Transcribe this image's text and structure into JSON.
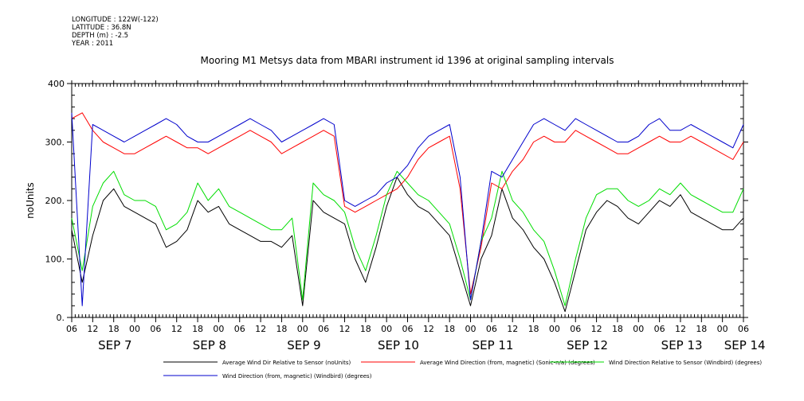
{
  "metadata": [
    "LONGITUDE : 122W(-122)",
    "LATITUDE : 36.8N",
    "DEPTH (m) : -2.5",
    "YEAR : 2011"
  ],
  "chart_data": {
    "type": "line",
    "title": "Mooring M1 Metsys data from MBARI instrument id 1396 at original sampling intervals",
    "ylabel": "noUnits",
    "xlabel": "",
    "ylim": [
      0,
      400
    ],
    "yticks": [
      0,
      100,
      200,
      300,
      400
    ],
    "ytick_labels": [
      "0.",
      "100.",
      "200.",
      "300.",
      "400"
    ],
    "x_range_hours": [
      0,
      192
    ],
    "xtick_hours": [
      0,
      6,
      12,
      18,
      24,
      30,
      36,
      42,
      48,
      54,
      60,
      66,
      72,
      78,
      84,
      90,
      96,
      102,
      108,
      114,
      120,
      126,
      132,
      138,
      144,
      150,
      156,
      162,
      168,
      174,
      180,
      186,
      192
    ],
    "xtick_labels": [
      "06",
      "12",
      "18",
      "00",
      "06",
      "12",
      "18",
      "00",
      "06",
      "12",
      "18",
      "00",
      "06",
      "12",
      "18",
      "00",
      "06",
      "12",
      "18",
      "00",
      "06",
      "12",
      "18",
      "00",
      "06",
      "12",
      "18",
      "00",
      "06",
      "12",
      "18",
      "00",
      "06"
    ],
    "day_labels": [
      {
        "label": "SEP  7",
        "hour": 6
      },
      {
        "label": "SEP  8",
        "hour": 33
      },
      {
        "label": "SEP  9",
        "hour": 60
      },
      {
        "label": "SEP 10",
        "hour": 87
      },
      {
        "label": "SEP 11",
        "hour": 114
      },
      {
        "label": "SEP 12",
        "hour": 141
      },
      {
        "label": "SEP 13",
        "hour": 168
      },
      {
        "label": "SEP 14",
        "hour": 186
      }
    ],
    "grid": false,
    "legend_position": "bottom",
    "series": [
      {
        "name": "Average Wind Dir Relative to Sensor (noUnits)",
        "color": "#000000",
        "x": [
          0,
          3,
          6,
          9,
          12,
          15,
          18,
          21,
          24,
          27,
          30,
          33,
          36,
          39,
          42,
          45,
          48,
          51,
          54,
          57,
          60,
          63,
          66,
          69,
          72,
          75,
          78,
          81,
          84,
          87,
          90,
          93,
          96,
          99,
          102,
          105,
          108,
          111,
          114,
          117,
          120,
          123,
          126,
          129,
          132,
          135,
          138,
          141,
          144,
          147,
          150,
          153,
          156,
          159,
          162,
          165,
          168,
          171,
          174,
          177,
          180,
          183,
          186,
          189,
          192
        ],
        "values": [
          150,
          60,
          140,
          200,
          220,
          190,
          180,
          170,
          160,
          120,
          130,
          150,
          200,
          180,
          190,
          160,
          150,
          140,
          130,
          130,
          120,
          140,
          20,
          200,
          180,
          170,
          160,
          100,
          60,
          120,
          190,
          240,
          210,
          190,
          180,
          160,
          140,
          80,
          20,
          100,
          140,
          220,
          170,
          150,
          120,
          100,
          60,
          10,
          80,
          150,
          180,
          200,
          190,
          170,
          160,
          180,
          200,
          190,
          210,
          180,
          170,
          160,
          150,
          150,
          170
        ]
      },
      {
        "name": "Average Wind Direction (from, magnetic) (Sonic-n/a) (degrees)",
        "color": "#ff0000",
        "x": [
          0,
          3,
          6,
          9,
          12,
          15,
          18,
          21,
          24,
          27,
          30,
          33,
          36,
          39,
          42,
          45,
          48,
          51,
          54,
          57,
          60,
          63,
          66,
          69,
          72,
          75,
          78,
          81,
          84,
          87,
          90,
          93,
          96,
          99,
          102,
          105,
          108,
          111,
          114,
          117,
          120,
          123,
          126,
          129,
          132,
          135,
          138,
          141,
          144,
          147,
          150,
          153,
          156,
          159,
          162,
          165,
          168,
          171,
          174,
          177,
          180,
          183,
          186,
          189,
          192
        ],
        "values": [
          340,
          350,
          320,
          300,
          290,
          280,
          280,
          290,
          300,
          310,
          300,
          290,
          290,
          280,
          290,
          300,
          310,
          320,
          310,
          300,
          280,
          290,
          300,
          310,
          320,
          310,
          190,
          180,
          190,
          200,
          210,
          220,
          240,
          270,
          290,
          300,
          310,
          220,
          40,
          120,
          230,
          220,
          250,
          270,
          300,
          310,
          300,
          300,
          320,
          310,
          300,
          290,
          280,
          280,
          290,
          300,
          310,
          300,
          300,
          310,
          300,
          290,
          280,
          270,
          300
        ]
      },
      {
        "name": "Wind Direction Relative to Sensor (Windbird) (degrees)",
        "color": "#00dd00",
        "x": [
          0,
          3,
          6,
          9,
          12,
          15,
          18,
          21,
          24,
          27,
          30,
          33,
          36,
          39,
          42,
          45,
          48,
          51,
          54,
          57,
          60,
          63,
          66,
          69,
          72,
          75,
          78,
          81,
          84,
          87,
          90,
          93,
          96,
          99,
          102,
          105,
          108,
          111,
          114,
          117,
          120,
          123,
          126,
          129,
          132,
          135,
          138,
          141,
          144,
          147,
          150,
          153,
          156,
          159,
          162,
          165,
          168,
          171,
          174,
          177,
          180,
          183,
          186,
          189,
          192
        ],
        "values": [
          170,
          80,
          190,
          230,
          250,
          210,
          200,
          200,
          190,
          150,
          160,
          180,
          230,
          200,
          220,
          190,
          180,
          170,
          160,
          150,
          150,
          170,
          30,
          230,
          210,
          200,
          180,
          120,
          80,
          140,
          210,
          250,
          230,
          210,
          200,
          180,
          160,
          100,
          30,
          130,
          170,
          250,
          200,
          180,
          150,
          130,
          80,
          20,
          100,
          170,
          210,
          220,
          220,
          200,
          190,
          200,
          220,
          210,
          230,
          210,
          200,
          190,
          180,
          180,
          220
        ]
      },
      {
        "name": "Wind Direction (from, magnetic) (Windbird) (degrees)",
        "color": "#0000cc",
        "x": [
          0,
          3,
          6,
          9,
          12,
          15,
          18,
          21,
          24,
          27,
          30,
          33,
          36,
          39,
          42,
          45,
          48,
          51,
          54,
          57,
          60,
          63,
          66,
          69,
          72,
          75,
          78,
          81,
          84,
          87,
          90,
          93,
          96,
          99,
          102,
          105,
          108,
          111,
          114,
          117,
          120,
          123,
          126,
          129,
          132,
          135,
          138,
          141,
          144,
          147,
          150,
          153,
          156,
          159,
          162,
          165,
          168,
          171,
          174,
          177,
          180,
          183,
          186,
          189,
          192
        ],
        "values": [
          350,
          20,
          330,
          320,
          310,
          300,
          310,
          320,
          330,
          340,
          330,
          310,
          300,
          300,
          310,
          320,
          330,
          340,
          330,
          320,
          300,
          310,
          320,
          330,
          340,
          330,
          200,
          190,
          200,
          210,
          230,
          240,
          260,
          290,
          310,
          320,
          330,
          240,
          30,
          130,
          250,
          240,
          270,
          300,
          330,
          340,
          330,
          320,
          340,
          330,
          320,
          310,
          300,
          300,
          310,
          330,
          340,
          320,
          320,
          330,
          320,
          310,
          300,
          290,
          330
        ]
      }
    ]
  }
}
